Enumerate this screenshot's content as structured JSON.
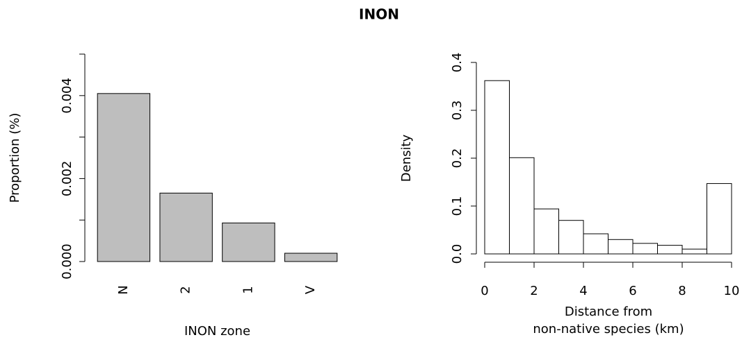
{
  "title": "INON",
  "chart_data": [
    {
      "type": "bar",
      "ylabel": "Proportion (%)",
      "xlabel": "INON zone",
      "categories": [
        "N",
        "2",
        "1",
        "V"
      ],
      "values": [
        0.00405,
        0.00165,
        0.00093,
        0.0002
      ],
      "color": "#bebebe",
      "ylim": [
        0,
        0.005
      ],
      "yticks": [
        {
          "value": 0,
          "label": "0.000"
        },
        {
          "value": 0.002,
          "label": "0.002"
        },
        {
          "value": 0.004,
          "label": "0.004"
        }
      ],
      "yminor_ticks": [
        0.001,
        0.003,
        0.005
      ]
    },
    {
      "type": "histogram",
      "ylabel": "Density",
      "xlabel": [
        "Distance from",
        "non-native species (km)"
      ],
      "bins": [
        0,
        1,
        2,
        3,
        4,
        5,
        6,
        7,
        8,
        9,
        10
      ],
      "values": [
        0.362,
        0.201,
        0.094,
        0.07,
        0.042,
        0.03,
        0.022,
        0.018,
        0.01,
        0.147
      ],
      "color": "#ffffff",
      "xlim": [
        0,
        10
      ],
      "ylim": [
        0,
        0.4
      ],
      "xticks": [
        0,
        2,
        4,
        6,
        8,
        10
      ],
      "yticks": [
        {
          "value": 0,
          "label": "0.0"
        },
        {
          "value": 0.1,
          "label": "0.1"
        },
        {
          "value": 0.2,
          "label": "0.2"
        },
        {
          "value": 0.3,
          "label": "0.3"
        },
        {
          "value": 0.4,
          "label": "0.4"
        }
      ]
    }
  ]
}
